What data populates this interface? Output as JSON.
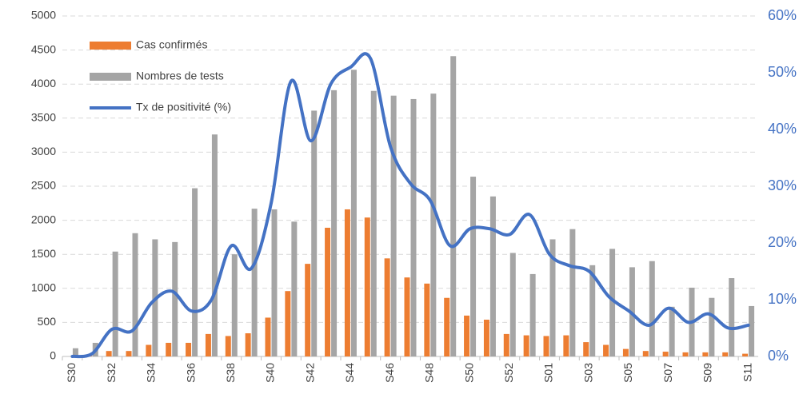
{
  "chart_data": {
    "type": "bar_line",
    "categories": [
      "S30",
      null,
      "S32",
      null,
      "S34",
      null,
      "S36",
      null,
      "S38",
      null,
      "S40",
      null,
      "S42",
      null,
      "S44",
      null,
      "S46",
      null,
      "S48",
      null,
      "S50",
      null,
      "S52",
      null,
      "S01",
      null,
      "S03",
      null,
      "S05",
      null,
      "S07",
      null,
      "S09",
      null,
      "S11"
    ],
    "series": [
      {
        "name": "Cas confirmés",
        "type": "bar",
        "color": "#ED7D31",
        "values": [
          0,
          20,
          80,
          80,
          170,
          200,
          200,
          330,
          300,
          340,
          570,
          960,
          1360,
          1890,
          2160,
          2040,
          1440,
          1160,
          1070,
          860,
          600,
          540,
          330,
          310,
          300,
          310,
          210,
          170,
          110,
          80,
          70,
          60,
          60,
          60,
          40
        ]
      },
      {
        "name": "Nombres de tests",
        "type": "bar",
        "color": "#A5A5A5",
        "values": [
          120,
          200,
          1540,
          1810,
          1720,
          1680,
          2470,
          3260,
          1500,
          2170,
          2160,
          1980,
          3610,
          3910,
          4210,
          3900,
          3830,
          3780,
          3860,
          4410,
          2640,
          2350,
          1520,
          1210,
          1720,
          1870,
          1340,
          1580,
          1310,
          1400,
          730,
          1010,
          860,
          1150,
          740
        ]
      },
      {
        "name": "Tx de positivité (%)",
        "type": "line",
        "color": "#4472C4",
        "axis": "y2",
        "values": [
          0,
          0.5,
          4.8,
          4.5,
          9.5,
          11.5,
          8,
          10,
          19.5,
          15.5,
          27,
          48.5,
          38,
          48,
          51,
          52.5,
          37,
          30.5,
          27.5,
          19.5,
          22.5,
          22.5,
          21.5,
          25,
          18,
          16,
          15,
          10.5,
          8,
          5.5,
          8.5,
          6,
          7.5,
          5,
          5.5
        ]
      }
    ],
    "ylim": [
      0,
      5000
    ],
    "yticks": [
      0,
      500,
      1000,
      1500,
      2000,
      2500,
      3000,
      3500,
      4000,
      4500,
      5000
    ],
    "y2lim": [
      0,
      60
    ],
    "y2ticks": [
      {
        "value": 0,
        "label": "0%"
      },
      {
        "value": 10,
        "label": "10%"
      },
      {
        "value": 20,
        "label": "20%"
      },
      {
        "value": 30,
        "label": "30%"
      },
      {
        "value": 40,
        "label": "40%"
      },
      {
        "value": 50,
        "label": "50%"
      },
      {
        "value": 60,
        "label": "60%"
      }
    ],
    "grid": true,
    "legend": "top-left"
  }
}
